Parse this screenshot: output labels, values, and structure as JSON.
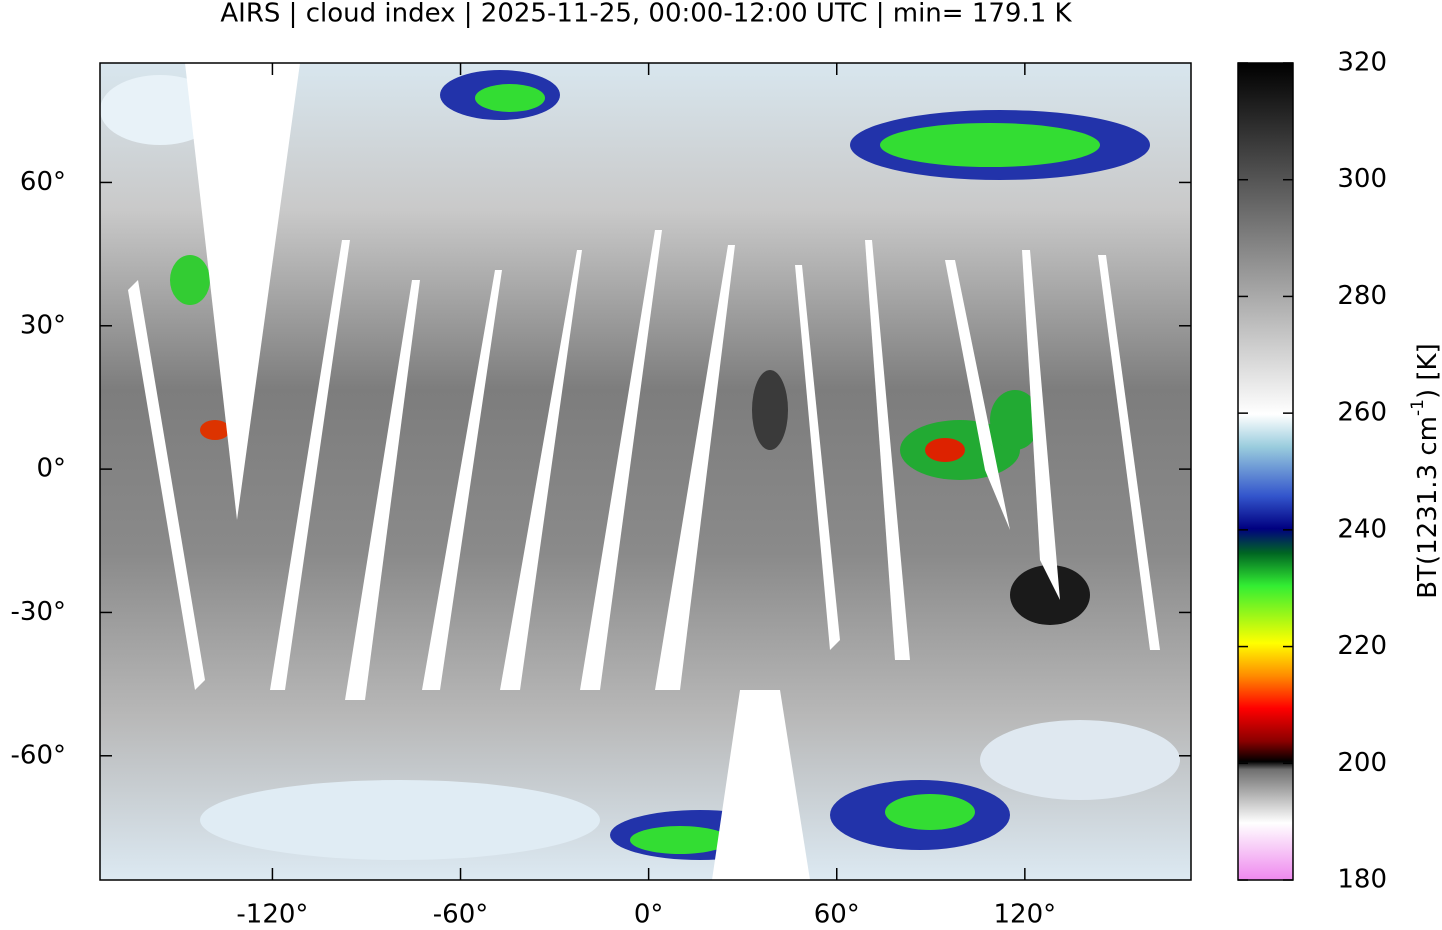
{
  "chart_data": {
    "type": "map",
    "title": "AIRS | cloud index | 2025-11-25, 00:00-12:00 UTC | min= 179.1 K",
    "xlim": [
      -175,
      173
    ],
    "ylim": [
      -86,
      85
    ],
    "xticks": [
      {
        "value": -120,
        "label": "-120°"
      },
      {
        "value": -60,
        "label": "-60°"
      },
      {
        "value": 0,
        "label": "0°"
      },
      {
        "value": 60,
        "label": "60°"
      },
      {
        "value": 120,
        "label": "120°"
      }
    ],
    "yticks": [
      {
        "value": -60,
        "label": "-60°"
      },
      {
        "value": -30,
        "label": "-30°"
      },
      {
        "value": 0,
        "label": "0°"
      },
      {
        "value": 30,
        "label": "30°"
      },
      {
        "value": 60,
        "label": "60°"
      }
    ],
    "colorbar": {
      "label_main": "BT(1231.3 cm",
      "label_sup": "-1",
      "label_end": ") [K]",
      "lim": [
        180,
        320
      ],
      "ticks": [
        180,
        200,
        220,
        240,
        260,
        280,
        300,
        320
      ]
    }
  }
}
